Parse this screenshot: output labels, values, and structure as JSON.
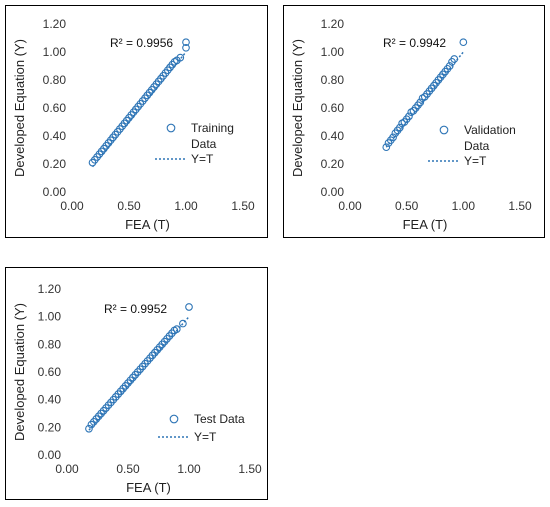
{
  "chart_data": [
    {
      "type": "scatter",
      "xlabel": "FEA (T)",
      "ylabel": "Developed Equation (Y)",
      "xlim": [
        0,
        1.5
      ],
      "ylim": [
        0,
        1.2
      ],
      "xticks": [
        "0.00",
        "0.50",
        "1.00",
        "1.50"
      ],
      "yticks": [
        "0.00",
        "0.20",
        "0.40",
        "0.60",
        "0.80",
        "1.00",
        "1.20"
      ],
      "annotation": "R² = 0.9956",
      "legend_position": "right",
      "series": [
        {
          "name": "Training Data",
          "marker": "circle-open",
          "color": "#2E75B6",
          "x": [
            0.18,
            0.2,
            0.22,
            0.24,
            0.26,
            0.28,
            0.3,
            0.32,
            0.34,
            0.36,
            0.38,
            0.4,
            0.42,
            0.44,
            0.46,
            0.48,
            0.5,
            0.52,
            0.54,
            0.56,
            0.58,
            0.6,
            0.62,
            0.64,
            0.66,
            0.68,
            0.7,
            0.72,
            0.74,
            0.76,
            0.78,
            0.8,
            0.82,
            0.84,
            0.86,
            0.88,
            0.9,
            0.92,
            0.95,
            1.0,
            1.0
          ],
          "y": [
            0.21,
            0.23,
            0.25,
            0.27,
            0.29,
            0.31,
            0.33,
            0.35,
            0.37,
            0.39,
            0.41,
            0.43,
            0.45,
            0.47,
            0.49,
            0.51,
            0.53,
            0.55,
            0.57,
            0.59,
            0.61,
            0.63,
            0.65,
            0.67,
            0.69,
            0.71,
            0.73,
            0.75,
            0.77,
            0.79,
            0.81,
            0.83,
            0.85,
            0.87,
            0.89,
            0.91,
            0.93,
            0.94,
            0.96,
            1.03,
            1.07
          ]
        },
        {
          "name": "Y=T",
          "style": "dotted-line",
          "color": "#2E75B6",
          "x": [
            0.18,
            1.0
          ],
          "y": [
            0.18,
            1.0
          ]
        }
      ]
    },
    {
      "type": "scatter",
      "xlabel": "FEA (T)",
      "ylabel": "Developed Equation (Y)",
      "xlim": [
        0,
        1.5
      ],
      "ylim": [
        0,
        1.2
      ],
      "xticks": [
        "0.00",
        "0.50",
        "1.00",
        "1.50"
      ],
      "yticks": [
        "0.00",
        "0.20",
        "0.40",
        "0.60",
        "0.80",
        "1.00",
        "1.20"
      ],
      "annotation": "R² = 0.9942",
      "legend_position": "right",
      "series": [
        {
          "name": "Validation Data",
          "marker": "circle-open",
          "color": "#2E75B6",
          "x": [
            0.32,
            0.34,
            0.36,
            0.38,
            0.4,
            0.42,
            0.44,
            0.46,
            0.48,
            0.5,
            0.52,
            0.54,
            0.56,
            0.58,
            0.6,
            0.62,
            0.64,
            0.66,
            0.68,
            0.7,
            0.72,
            0.74,
            0.76,
            0.78,
            0.8,
            0.82,
            0.84,
            0.86,
            0.88,
            0.9,
            0.92,
            1.0
          ],
          "y": [
            0.32,
            0.35,
            0.37,
            0.39,
            0.42,
            0.44,
            0.46,
            0.49,
            0.5,
            0.52,
            0.54,
            0.57,
            0.58,
            0.6,
            0.62,
            0.64,
            0.67,
            0.68,
            0.7,
            0.72,
            0.74,
            0.76,
            0.78,
            0.8,
            0.82,
            0.84,
            0.86,
            0.88,
            0.9,
            0.93,
            0.95,
            1.07
          ]
        },
        {
          "name": "Y=T",
          "style": "dotted-line",
          "color": "#2E75B6",
          "x": [
            0.32,
            1.0
          ],
          "y": [
            0.32,
            1.0
          ]
        }
      ]
    },
    {
      "type": "scatter",
      "xlabel": "FEA (T)",
      "ylabel": "Developed Equation (Y)",
      "xlim": [
        0,
        1.5
      ],
      "ylim": [
        0,
        1.2
      ],
      "xticks": [
        "0.00",
        "0.50",
        "1.00",
        "1.50"
      ],
      "yticks": [
        "0.00",
        "0.20",
        "0.40",
        "0.60",
        "0.80",
        "1.00",
        "1.20"
      ],
      "annotation": "R² = 0.9952",
      "legend_position": "right",
      "series": [
        {
          "name": "Test Data",
          "marker": "circle-open",
          "color": "#2E75B6",
          "x": [
            0.18,
            0.2,
            0.22,
            0.24,
            0.26,
            0.28,
            0.3,
            0.32,
            0.34,
            0.36,
            0.38,
            0.4,
            0.42,
            0.44,
            0.46,
            0.48,
            0.5,
            0.52,
            0.54,
            0.56,
            0.58,
            0.6,
            0.62,
            0.64,
            0.66,
            0.68,
            0.7,
            0.72,
            0.74,
            0.76,
            0.78,
            0.8,
            0.82,
            0.84,
            0.86,
            0.88,
            0.9,
            0.95,
            1.0
          ],
          "y": [
            0.19,
            0.22,
            0.24,
            0.26,
            0.28,
            0.3,
            0.32,
            0.34,
            0.36,
            0.38,
            0.4,
            0.42,
            0.44,
            0.46,
            0.48,
            0.5,
            0.52,
            0.54,
            0.56,
            0.58,
            0.6,
            0.62,
            0.64,
            0.66,
            0.68,
            0.7,
            0.72,
            0.74,
            0.76,
            0.78,
            0.8,
            0.82,
            0.84,
            0.86,
            0.88,
            0.9,
            0.91,
            0.95,
            1.07
          ]
        },
        {
          "name": "Y=T",
          "style": "dotted-line",
          "color": "#2E75B6",
          "x": [
            0.18,
            1.0
          ],
          "y": [
            0.18,
            1.0
          ]
        }
      ]
    }
  ]
}
